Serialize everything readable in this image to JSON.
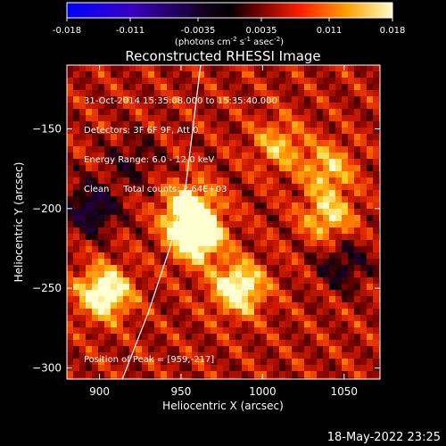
{
  "chart_data": {
    "type": "heatmap",
    "title": "Reconstructed RHESSI Image",
    "xlabel": "Heliocentric X (arcsec)",
    "ylabel": "Heliocentric Y (arcsec)",
    "xlim": [
      880,
      1072
    ],
    "ylim": [
      -307,
      -110
    ],
    "xticks": [
      900,
      950,
      1000,
      1050
    ],
    "yticks": [
      -150,
      -200,
      -250,
      -300
    ],
    "colorbar": {
      "min": -0.018,
      "max": 0.018,
      "ticks": [
        "-0.018",
        "-0.011",
        "-0.0035",
        "0.0035",
        "0.011",
        "0.018"
      ],
      "unit_text": "(photons cm",
      "unit_sup1": "-2",
      "unit_mid": " s",
      "unit_sup2": "-1",
      "unit_end": " asec",
      "unit_sup3": "-2",
      "unit_close": ")"
    },
    "sources": [
      {
        "x": 959,
        "y": -217,
        "intensity": 0.018
      },
      {
        "x": 955,
        "y": -200,
        "intensity": 0.013
      },
      {
        "x": 903,
        "y": -253,
        "intensity": 0.016
      },
      {
        "x": 985,
        "y": -250,
        "intensity": 0.015
      },
      {
        "x": 1040,
        "y": -205,
        "intensity": 0.01
      },
      {
        "x": 1040,
        "y": -175,
        "intensity": 0.009
      },
      {
        "x": 1010,
        "y": -160,
        "intensity": 0.008
      }
    ],
    "negative_regions": [
      {
        "x": 895,
        "y": -200,
        "intensity": -0.01
      },
      {
        "x": 1050,
        "y": -235,
        "intensity": -0.007
      },
      {
        "x": 920,
        "y": -170,
        "intensity": -0.005
      }
    ],
    "limb": [
      {
        "x": 914,
        "y": -307
      },
      {
        "x": 930,
        "y": -265
      },
      {
        "x": 943,
        "y": -225
      },
      {
        "x": 953,
        "y": -185
      },
      {
        "x": 962,
        "y": -110
      }
    ],
    "colors": {
      "limb": "#ffffff",
      "background": "#000000"
    }
  },
  "overlay": {
    "line1": "31-Oct-2014 15:35:08.000 to 15:35:40.000",
    "line2": "Detectors: 3F 6F 9F, Att 0",
    "line3": "Energy Range: 6.0 - 12.0 keV",
    "line4_a": "Clean",
    "line4_b": "Total counts: 2.64E+03",
    "peak": "Position of Peak = [959,-217]"
  },
  "footer": {
    "timestamp": "18-May-2022 23:25"
  }
}
